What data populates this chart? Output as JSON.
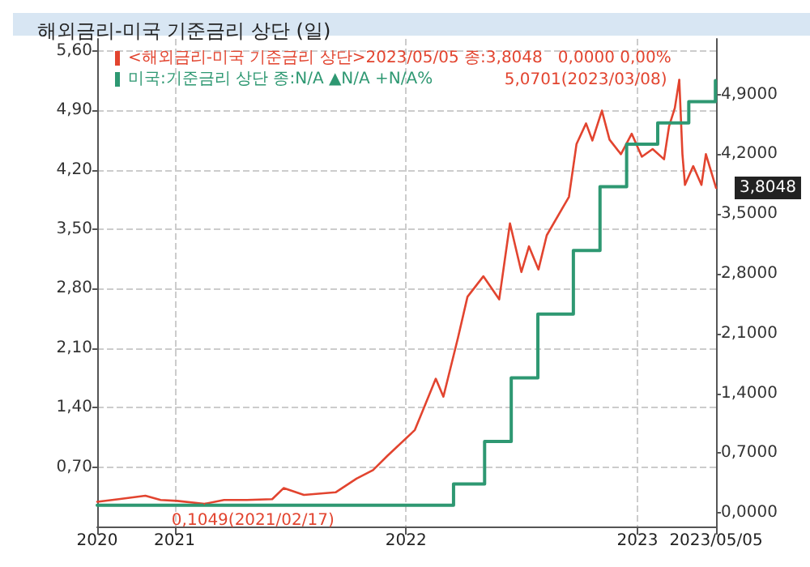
{
  "chart_data": {
    "type": "line",
    "title": "해외금리-미국 기준금리 상단 (일)",
    "annotations": [
      "5,0701(2023/03/08)",
      "0,1049(2021/02/17)",
      "3,8048"
    ],
    "series": [
      {
        "name": "<해외금리-미국 기준금리 상단>2023/05/05 종:3,8048   0,0000 0,00%",
        "color": "#e2442f",
        "axis": "y2",
        "x": [
          "2020-09-01",
          "2020-10-05",
          "2020-11-16",
          "2020-12-10",
          "2021-01-05",
          "2021-02-17",
          "2021-03-20",
          "2021-04-25",
          "2021-06-04",
          "2021-06-22",
          "2021-07-24",
          "2021-09-12",
          "2021-10-15",
          "2021-11-10",
          "2021-12-03",
          "2022-01-15",
          "2022-02-17",
          "2022-03-01",
          "2022-03-24",
          "2022-04-08",
          "2022-05-03",
          "2022-05-28",
          "2022-06-14",
          "2022-07-02",
          "2022-07-14",
          "2022-07-29",
          "2022-08-11",
          "2022-09-15",
          "2022-09-27",
          "2022-10-12",
          "2022-10-22",
          "2022-11-06",
          "2022-11-18",
          "2022-12-06",
          "2022-12-23",
          "2023-01-08",
          "2023-01-25",
          "2023-02-12",
          "2023-02-20",
          "2023-03-01",
          "2023-03-08",
          "2023-03-13",
          "2023-03-17",
          "2023-03-30",
          "2023-04-12",
          "2023-04-19",
          "2023-04-28",
          "2023-05-05"
        ],
        "values": [
          0.13,
          0.16,
          0.2,
          0.15,
          0.14,
          0.1049,
          0.15,
          0.15,
          0.16,
          0.29,
          0.21,
          0.24,
          0.4,
          0.5,
          0.67,
          0.97,
          1.57,
          1.36,
          2.05,
          2.53,
          2.77,
          2.5,
          3.39,
          2.82,
          3.12,
          2.85,
          3.25,
          3.7,
          4.32,
          4.56,
          4.36,
          4.71,
          4.37,
          4.2,
          4.44,
          4.17,
          4.26,
          4.14,
          4.53,
          4.74,
          5.0701,
          4.2,
          3.84,
          4.06,
          3.84,
          4.2,
          3.98,
          3.8048
        ]
      },
      {
        "name": "미국:기준금리 상단 종:N/A ▲N/A +N/A%",
        "color": "#2e9872",
        "type": "step",
        "x": [
          "2020-09-01",
          "2022-03-17",
          "2022-05-05",
          "2022-06-16",
          "2022-07-28",
          "2022-09-22",
          "2022-11-03",
          "2022-12-15",
          "2023-02-02",
          "2023-03-23",
          "2023-05-04"
        ],
        "values": [
          0.25,
          0.5,
          1.0,
          1.75,
          2.5,
          3.25,
          4.0,
          4.5,
          4.75,
          5.0,
          5.25
        ]
      }
    ],
    "xlim": [
      "2020-09-01",
      "2023-05-05"
    ],
    "xticks": [
      {
        "value": "2020-09-01",
        "label": "2020"
      },
      {
        "value": "2021-01-01",
        "label": "2021"
      },
      {
        "value": "2022-01-01",
        "label": "2022"
      },
      {
        "value": "2023-01-01",
        "label": "2023"
      },
      {
        "value": "2023-05-05",
        "label": "2023/05/05"
      }
    ],
    "ylim": [
      0,
      5.74
    ],
    "yticks": [
      {
        "value": 0.7,
        "label": "0,70"
      },
      {
        "value": 1.4,
        "label": "1,40"
      },
      {
        "value": 2.1,
        "label": "2,10"
      },
      {
        "value": 2.8,
        "label": "2,80"
      },
      {
        "value": 3.5,
        "label": "3,50"
      },
      {
        "value": 4.2,
        "label": "4,20"
      },
      {
        "value": 4.9,
        "label": "4,90"
      },
      {
        "value": 5.6,
        "label": "5,60"
      }
    ],
    "y2lim": [
      -0.16,
      5.55
    ],
    "y2ticks": [
      {
        "value": 0,
        "label": "0,0000"
      },
      {
        "value": 0.7,
        "label": "0,7000"
      },
      {
        "value": 1.4,
        "label": "1,4000"
      },
      {
        "value": 2.1,
        "label": "2,1000"
      },
      {
        "value": 2.8,
        "label": "2,8000"
      },
      {
        "value": 3.5,
        "label": "3,5000"
      },
      {
        "value": 4.2,
        "label": "4,2000"
      },
      {
        "value": 4.9,
        "label": "4,9000"
      }
    ],
    "grid": true,
    "legend": "top left",
    "marker": "none",
    "line_style": "solid"
  }
}
